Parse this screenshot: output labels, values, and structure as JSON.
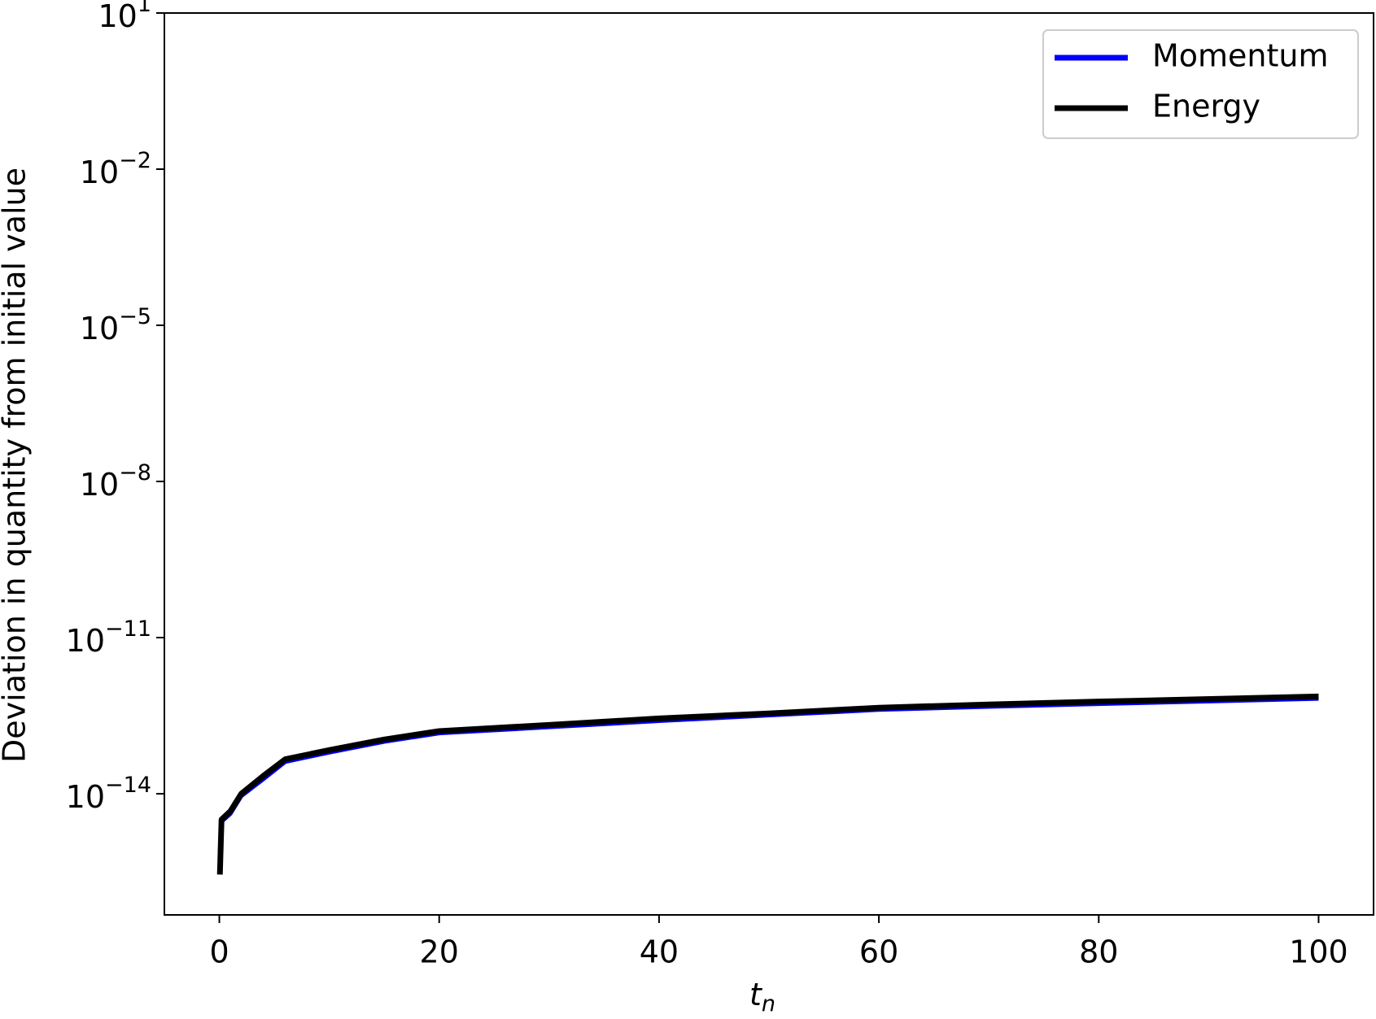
{
  "chart_data": {
    "type": "line",
    "x_label": "t",
    "x_label_sub": "n",
    "y_label": "Deviation in quantity from initial value",
    "x": [
      0.05,
      0.2,
      1,
      2,
      4,
      6,
      10,
      15,
      20,
      30,
      40,
      50,
      60,
      70,
      80,
      100
    ],
    "series": [
      {
        "name": "Momentum",
        "color": "#0000ff",
        "values": [
          7.9e-16,
          2.9e-15,
          4.1e-15,
          9e-15,
          1.9e-14,
          4.1e-14,
          6.2e-14,
          1e-13,
          1.45e-13,
          1.9e-13,
          2.5e-13,
          3.2e-13,
          4.1e-13,
          4.7e-13,
          5.3e-13,
          6.7e-13
        ]
      },
      {
        "name": "Energy",
        "color": "#000000",
        "values": [
          2.8e-16,
          3.2e-15,
          4.6e-15,
          1e-14,
          2.2e-14,
          4.6e-14,
          6.9e-14,
          1.1e-13,
          1.6e-13,
          2.1e-13,
          2.8e-13,
          3.5e-13,
          4.5e-13,
          5.2e-13,
          5.9e-13,
          7.4e-13
        ]
      }
    ],
    "xlim": [
      -5,
      105
    ],
    "xticks": [
      0,
      20,
      40,
      60,
      80,
      100
    ],
    "ylim": [
      4.7e-17,
      10
    ],
    "y_scale": "log",
    "yticks": [
      {
        "value": 10,
        "label": "10",
        "power": "1"
      },
      {
        "value": 0.01,
        "label": "10",
        "power": "−2"
      },
      {
        "value": 1e-05,
        "label": "10",
        "power": "−5"
      },
      {
        "value": 1e-08,
        "label": "10",
        "power": "−8"
      },
      {
        "value": 1e-11,
        "label": "10",
        "power": "−11"
      },
      {
        "value": 1e-14,
        "label": "10",
        "power": "−14"
      }
    ],
    "legend": "upper right"
  }
}
